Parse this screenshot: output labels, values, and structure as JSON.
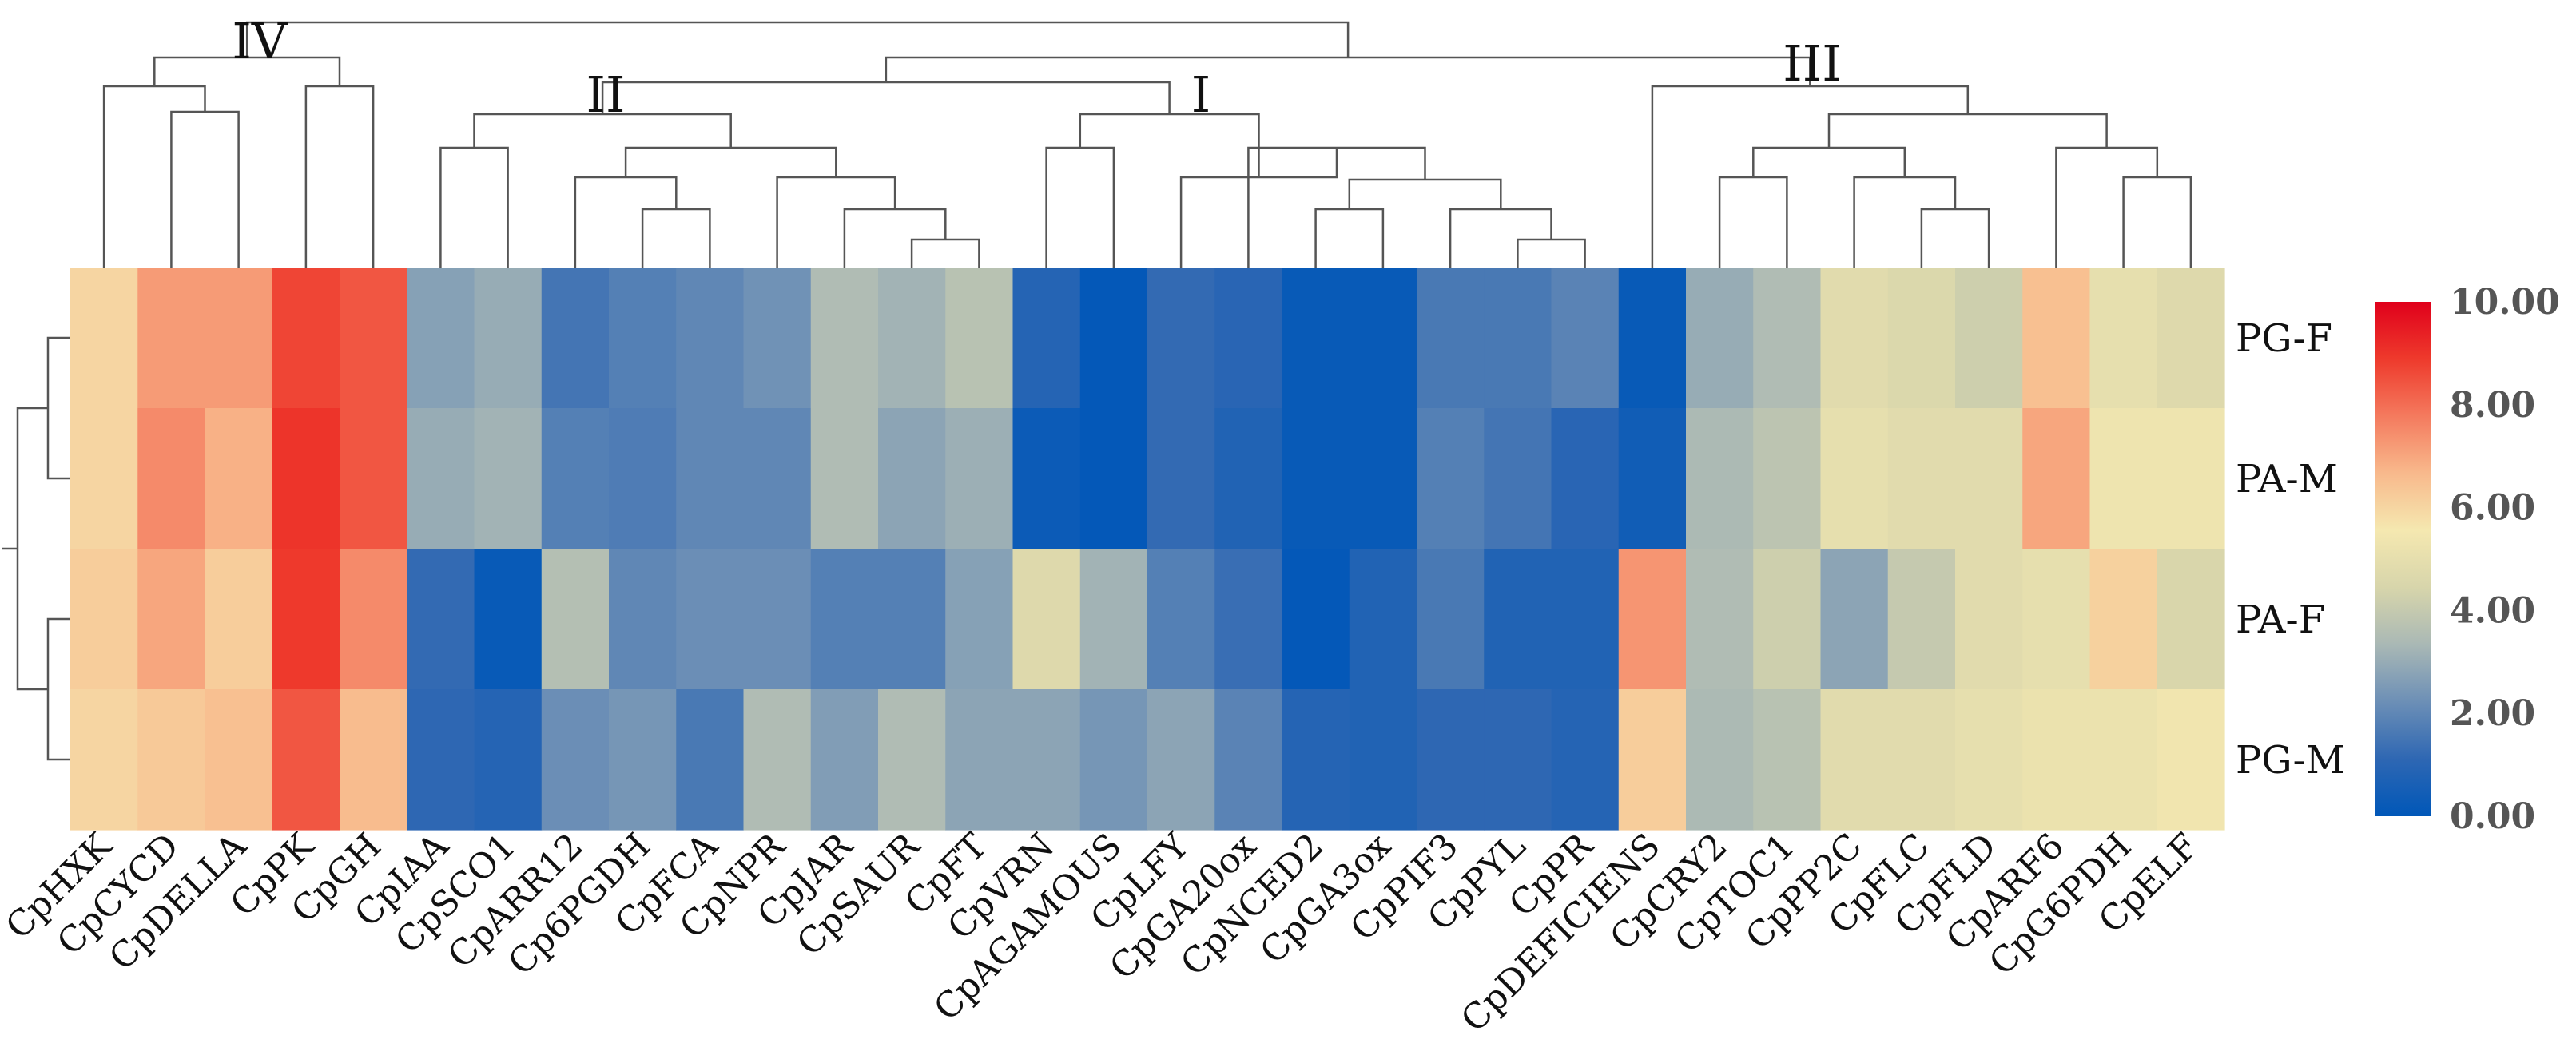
{
  "chart_data": {
    "type": "heatmap",
    "title": "",
    "columns": [
      "CpHXK",
      "CpCYCD",
      "CpDELLA",
      "CpPK",
      "CpGH",
      "CpIAA",
      "CpSCO1",
      "CpARR12",
      "Cp6PGDH",
      "CpFCA",
      "CpNPR",
      "CpJAR",
      "CpSAUR",
      "CpFT",
      "CpVRN",
      "CpAGAMOUS",
      "CpLFY",
      "CpGA20ox",
      "CpNCED2",
      "CpGA3ox",
      "CpPIF3",
      "CpPYL",
      "CpPR",
      "CpDEFICIENS",
      "CpCRY2",
      "CpTOC1",
      "CpPP2C",
      "CpFLC",
      "CpFLD",
      "CpARF6",
      "CpG6PDH",
      "CpELF"
    ],
    "rows": [
      "PG-F",
      "PA-M",
      "PA-F",
      "PG-M"
    ],
    "values": [
      [
        6.0,
        7.2,
        7.2,
        8.7,
        8.4,
        2.7,
        3.0,
        1.5,
        1.8,
        2.0,
        2.3,
        3.5,
        3.2,
        3.7,
        0.9,
        0.1,
        1.2,
        1.0,
        0.2,
        0.2,
        1.6,
        1.6,
        1.9,
        0.2,
        3.0,
        3.5,
        4.8,
        4.6,
        4.2,
        6.5,
        5.0,
        4.7
      ],
      [
        6.0,
        7.5,
        6.8,
        9.0,
        8.4,
        3.0,
        3.2,
        1.8,
        1.7,
        2.0,
        2.0,
        3.5,
        2.8,
        3.1,
        0.3,
        0.1,
        1.2,
        0.8,
        0.2,
        0.2,
        1.8,
        1.5,
        1.0,
        0.4,
        3.4,
        3.8,
        5.0,
        4.8,
        4.8,
        7.0,
        5.3,
        5.3
      ],
      [
        6.2,
        7.0,
        6.2,
        8.9,
        7.5,
        1.2,
        0.2,
        3.6,
        2.0,
        2.2,
        2.2,
        1.8,
        1.8,
        2.7,
        4.7,
        3.2,
        1.8,
        1.3,
        0.1,
        0.8,
        1.6,
        0.8,
        0.8,
        7.3,
        3.5,
        4.2,
        2.8,
        4.0,
        4.8,
        5.0,
        6.1,
        4.5
      ],
      [
        6.0,
        6.3,
        6.5,
        8.4,
        6.6,
        1.1,
        0.9,
        2.2,
        2.4,
        1.6,
        3.5,
        2.6,
        3.5,
        2.8,
        2.8,
        2.4,
        2.8,
        1.9,
        0.9,
        0.8,
        1.1,
        1.1,
        0.9,
        6.2,
        3.4,
        3.7,
        4.8,
        4.8,
        5.0,
        5.2,
        5.2,
        5.4
      ]
    ],
    "colorbar": {
      "min": 0,
      "max": 10,
      "ticks": [
        "10.00",
        "8.00",
        "6.00",
        "4.00",
        "2.00",
        "0.00"
      ],
      "colors": [
        "#e0001b",
        "#ee3a2c",
        "#f47a5e",
        "#f8b98c",
        "#f5e8b0",
        "#d7d5ab",
        "#a9b8b5",
        "#6c8fb6",
        "#2e67b3",
        "#0057b8"
      ]
    },
    "clusters": [
      "IV",
      "II",
      "I",
      "III"
    ]
  }
}
